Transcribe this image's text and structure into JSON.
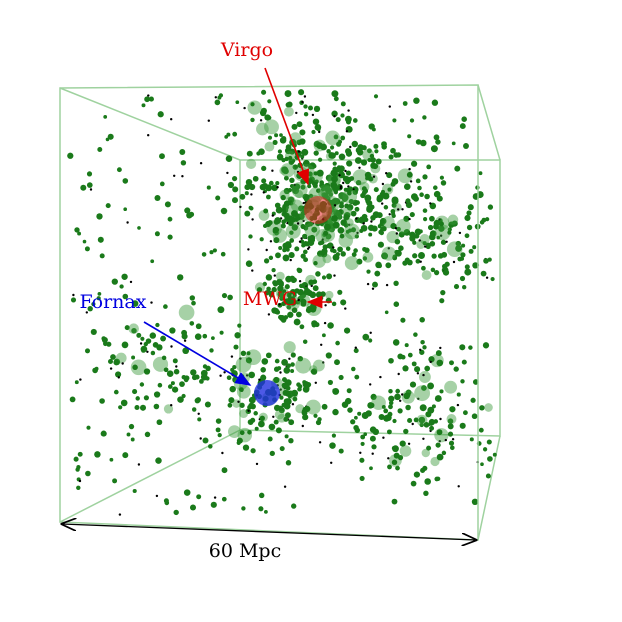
{
  "labels": {
    "virgo": "Virgo",
    "mwg": "MWG",
    "fornax": "Fornax",
    "scale": "60 Mpc"
  }
}
